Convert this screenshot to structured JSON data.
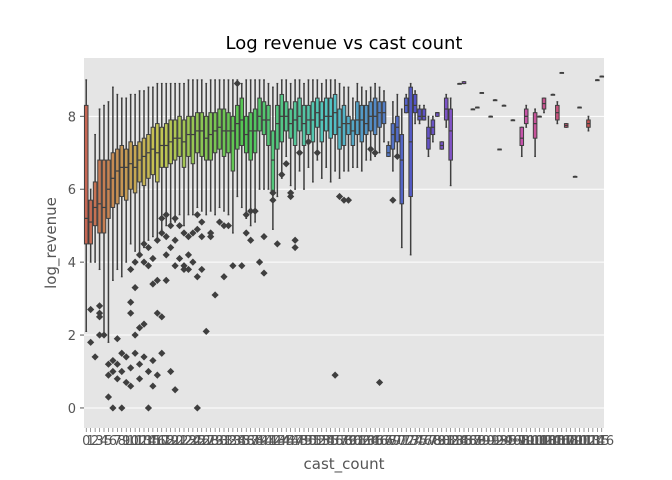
{
  "chart_data": {
    "type": "box",
    "title": "Log revenue vs cast count",
    "xlabel": "cast_count",
    "ylabel": "log_revenue",
    "ylim": [
      -0.55,
      9.6
    ],
    "y_ticks": [
      0,
      2,
      4,
      6,
      8
    ],
    "grid": true,
    "legend": "none",
    "style": "ggplot",
    "colors": {
      "panel": "#e5e5e5",
      "grid": "#ffffff",
      "box_edge": "#3f3f3f",
      "text": "#555555",
      "title": "#000000",
      "outlier": "#3f3f3f"
    },
    "x_tick_labels_visible": [
      "0",
      "1",
      "2",
      "3",
      "4",
      "5",
      "6",
      "7",
      "8",
      "9",
      "...",
      "6",
      "6"
    ],
    "boxes": [
      {
        "cat": "0",
        "q1": 4.5,
        "med": 5.2,
        "q3": 8.3,
        "lo": 2.1,
        "hi": 9.0,
        "fl": []
      },
      {
        "cat": "1",
        "q1": 4.5,
        "med": 5.1,
        "q3": 5.7,
        "lo": 4.0,
        "hi": 6.0,
        "fl": [
          2.7,
          1.8
        ]
      },
      {
        "cat": "2",
        "q1": 5.0,
        "med": 5.5,
        "q3": 6.2,
        "lo": 4.0,
        "hi": 7.5,
        "fl": [
          1.4
        ]
      },
      {
        "cat": "3",
        "q1": 4.8,
        "med": 5.6,
        "q3": 6.8,
        "lo": 3.8,
        "hi": 8.2,
        "fl": [
          2.8,
          2.6,
          2.5,
          2.0
        ]
      },
      {
        "cat": "4",
        "q1": 4.8,
        "med": 5.5,
        "q3": 6.8,
        "lo": 2.0,
        "hi": 8.3,
        "fl": [
          2.0
        ]
      },
      {
        "cat": "5",
        "q1": 5.2,
        "med": 6.0,
        "q3": 6.8,
        "lo": 1.8,
        "hi": 8.4,
        "fl": [
          1.2,
          0.9,
          0.3
        ]
      },
      {
        "cat": "6",
        "q1": 5.5,
        "med": 6.3,
        "q3": 7.0,
        "lo": 3.5,
        "hi": 8.8,
        "fl": [
          1.3,
          1.0,
          0.0
        ]
      },
      {
        "cat": "7",
        "q1": 5.6,
        "med": 6.5,
        "q3": 7.1,
        "lo": 3.8,
        "hi": 8.6,
        "fl": [
          1.9,
          1.2,
          0.8
        ]
      },
      {
        "cat": "8",
        "q1": 5.8,
        "med": 6.6,
        "q3": 7.2,
        "lo": 3.6,
        "hi": 8.5,
        "fl": [
          1.5,
          1.0,
          0.0
        ]
      },
      {
        "cat": "9",
        "q1": 5.7,
        "med": 6.6,
        "q3": 7.1,
        "lo": 4.0,
        "hi": 8.5,
        "fl": [
          1.4,
          0.7
        ]
      },
      {
        "cat": "10",
        "q1": 6.0,
        "med": 6.7,
        "q3": 7.3,
        "lo": 4.5,
        "hi": 8.6,
        "fl": [
          3.8,
          2.9,
          2.6,
          1.1,
          0.6
        ]
      },
      {
        "cat": "11",
        "q1": 5.9,
        "med": 6.6,
        "q3": 7.2,
        "lo": 4.3,
        "hi": 8.6,
        "fl": [
          4.0,
          3.3,
          2.0,
          1.5
        ]
      },
      {
        "cat": "12",
        "q1": 6.2,
        "med": 6.8,
        "q3": 7.3,
        "lo": 4.2,
        "hi": 8.7,
        "fl": [
          4.2,
          2.2,
          1.2,
          0.8
        ]
      },
      {
        "cat": "13",
        "q1": 6.1,
        "med": 6.9,
        "q3": 7.4,
        "lo": 4.4,
        "hi": 8.7,
        "fl": [
          4.5,
          4.0,
          2.3,
          1.4
        ]
      },
      {
        "cat": "14",
        "q1": 6.3,
        "med": 7.0,
        "q3": 7.5,
        "lo": 4.6,
        "hi": 8.8,
        "fl": [
          4.4,
          3.9,
          1.0,
          0.0
        ]
      },
      {
        "cat": "15",
        "q1": 6.4,
        "med": 7.1,
        "q3": 7.7,
        "lo": 4.7,
        "hi": 8.8,
        "fl": [
          4.1,
          3.4,
          1.3,
          0.6
        ]
      },
      {
        "cat": "16",
        "q1": 6.2,
        "med": 7.0,
        "q3": 7.8,
        "lo": 4.6,
        "hi": 8.9,
        "fl": [
          4.6,
          3.5,
          2.6,
          0.9
        ]
      },
      {
        "cat": "17",
        "q1": 6.6,
        "med": 7.2,
        "q3": 7.7,
        "lo": 4.9,
        "hi": 8.9,
        "fl": [
          5.2,
          4.8,
          2.5,
          1.5
        ]
      },
      {
        "cat": "18",
        "q1": 6.6,
        "med": 7.2,
        "q3": 7.8,
        "lo": 5.0,
        "hi": 8.9,
        "fl": [
          5.3,
          4.7,
          4.2,
          3.5
        ]
      },
      {
        "cat": "19",
        "q1": 6.7,
        "med": 7.3,
        "q3": 7.9,
        "lo": 5.1,
        "hi": 8.9,
        "fl": [
          5.0,
          4.4,
          1.0
        ]
      },
      {
        "cat": "20",
        "q1": 6.8,
        "med": 7.4,
        "q3": 7.9,
        "lo": 5.1,
        "hi": 8.9,
        "fl": [
          5.2,
          4.6,
          3.9,
          0.5
        ]
      },
      {
        "cat": "21",
        "q1": 6.9,
        "med": 7.4,
        "q3": 8.0,
        "lo": 5.3,
        "hi": 8.9,
        "fl": [
          5.0,
          4.1
        ]
      },
      {
        "cat": "22",
        "q1": 6.6,
        "med": 7.3,
        "q3": 7.9,
        "lo": 5.0,
        "hi": 8.9,
        "fl": [
          4.8,
          3.8,
          3.9
        ]
      },
      {
        "cat": "23",
        "q1": 6.9,
        "med": 7.5,
        "q3": 8.0,
        "lo": 5.3,
        "hi": 9.0,
        "fl": [
          4.7,
          4.2,
          3.8
        ]
      },
      {
        "cat": "24",
        "q1": 6.7,
        "med": 7.5,
        "q3": 8.0,
        "lo": 5.3,
        "hi": 9.0,
        "fl": [
          4.8,
          4.0
        ]
      },
      {
        "cat": "25",
        "q1": 7.0,
        "med": 7.6,
        "q3": 8.1,
        "lo": 5.5,
        "hi": 9.0,
        "fl": [
          5.3,
          4.9,
          3.6,
          0.0
        ]
      },
      {
        "cat": "26",
        "q1": 6.9,
        "med": 7.6,
        "q3": 8.1,
        "lo": 5.4,
        "hi": 9.0,
        "fl": [
          5.1,
          4.7,
          3.8
        ]
      },
      {
        "cat": "27",
        "q1": 6.8,
        "med": 7.4,
        "q3": 8.0,
        "lo": 5.3,
        "hi": 8.9,
        "fl": [
          2.1
        ]
      },
      {
        "cat": "28",
        "q1": 6.8,
        "med": 7.5,
        "q3": 8.1,
        "lo": 5.4,
        "hi": 9.0,
        "fl": [
          4.8,
          4.7
        ]
      },
      {
        "cat": "29",
        "q1": 7.0,
        "med": 7.6,
        "q3": 8.1,
        "lo": 5.3,
        "hi": 9.0,
        "fl": [
          3.1
        ]
      },
      {
        "cat": "30",
        "q1": 7.1,
        "med": 7.7,
        "q3": 8.2,
        "lo": 5.5,
        "hi": 9.0,
        "fl": [
          5.1
        ]
      },
      {
        "cat": "31",
        "q1": 6.9,
        "med": 7.6,
        "q3": 8.2,
        "lo": 5.4,
        "hi": 9.0,
        "fl": [
          3.6,
          5.0
        ]
      },
      {
        "cat": "32",
        "q1": 7.0,
        "med": 7.6,
        "q3": 8.1,
        "lo": 5.3,
        "hi": 9.0,
        "fl": [
          5.0
        ]
      },
      {
        "cat": "33",
        "q1": 6.5,
        "med": 7.6,
        "q3": 8.0,
        "lo": 4.8,
        "hi": 9.0,
        "fl": [
          3.9
        ]
      },
      {
        "cat": "34",
        "q1": 7.1,
        "med": 7.8,
        "q3": 8.3,
        "lo": 5.8,
        "hi": 9.0,
        "fl": [
          8.9
        ]
      },
      {
        "cat": "35",
        "q1": 7.2,
        "med": 7.9,
        "q3": 8.5,
        "lo": 5.5,
        "hi": 8.9,
        "fl": [
          3.9
        ]
      },
      {
        "cat": "36",
        "q1": 7.0,
        "med": 7.5,
        "q3": 8.0,
        "lo": 5.2,
        "hi": 9.0,
        "fl": [
          4.8,
          5.3
        ]
      },
      {
        "cat": "37",
        "q1": 6.8,
        "med": 7.6,
        "q3": 8.1,
        "lo": 5.0,
        "hi": 9.0,
        "fl": [
          4.6,
          5.4
        ]
      },
      {
        "cat": "38",
        "q1": 7.0,
        "med": 7.6,
        "q3": 8.2,
        "lo": 5.1,
        "hi": 9.0,
        "fl": [
          5.4
        ]
      },
      {
        "cat": "39",
        "q1": 7.6,
        "med": 8.0,
        "q3": 8.5,
        "lo": 6.0,
        "hi": 9.0,
        "fl": [
          4.0
        ]
      },
      {
        "cat": "40",
        "q1": 7.5,
        "med": 7.9,
        "q3": 8.4,
        "lo": 6.0,
        "hi": 9.0,
        "fl": [
          3.7,
          4.7
        ]
      },
      {
        "cat": "41",
        "q1": 7.2,
        "med": 7.9,
        "q3": 8.3,
        "lo": 6.0,
        "hi": 8.9,
        "fl": []
      },
      {
        "cat": "42",
        "q1": 5.9,
        "med": 6.8,
        "q3": 7.6,
        "lo": 4.9,
        "hi": 8.8,
        "fl": [
          5.7,
          5.9
        ]
      },
      {
        "cat": "43",
        "q1": 7.1,
        "med": 7.8,
        "q3": 8.3,
        "lo": 5.8,
        "hi": 8.9,
        "fl": [
          4.5
        ]
      },
      {
        "cat": "44",
        "q1": 7.3,
        "med": 8.0,
        "q3": 8.6,
        "lo": 6.3,
        "hi": 9.0,
        "fl": [
          6.4
        ]
      },
      {
        "cat": "45",
        "q1": 7.6,
        "med": 8.0,
        "q3": 8.4,
        "lo": 6.9,
        "hi": 9.0,
        "fl": [
          6.7
        ]
      },
      {
        "cat": "46",
        "q1": 7.4,
        "med": 7.8,
        "q3": 8.2,
        "lo": 6.1,
        "hi": 8.9,
        "fl": [
          5.9,
          5.8
        ]
      },
      {
        "cat": "47",
        "q1": 7.2,
        "med": 7.9,
        "q3": 8.4,
        "lo": 6.0,
        "hi": 9.0,
        "fl": [
          4.6,
          4.4
        ]
      },
      {
        "cat": "48",
        "q1": 7.6,
        "med": 8.0,
        "q3": 8.5,
        "lo": 6.5,
        "hi": 9.0,
        "fl": [
          7.0
        ]
      },
      {
        "cat": "49",
        "q1": 7.2,
        "med": 7.8,
        "q3": 8.3,
        "lo": 6.0,
        "hi": 8.9,
        "fl": []
      },
      {
        "cat": "50",
        "q1": 7.5,
        "med": 7.9,
        "q3": 8.3,
        "lo": 6.6,
        "hi": 9.0,
        "fl": [
          7.3
        ]
      },
      {
        "cat": "51",
        "q1": 7.3,
        "med": 7.9,
        "q3": 8.4,
        "lo": 6.2,
        "hi": 9.0,
        "fl": []
      },
      {
        "cat": "52",
        "q1": 7.7,
        "med": 8.1,
        "q3": 8.5,
        "lo": 6.8,
        "hi": 9.0,
        "fl": [
          7.0
        ]
      },
      {
        "cat": "53",
        "q1": 7.3,
        "med": 7.9,
        "q3": 8.4,
        "lo": 6.3,
        "hi": 8.9,
        "fl": []
      },
      {
        "cat": "54",
        "q1": 7.6,
        "med": 8.0,
        "q3": 8.5,
        "lo": 6.6,
        "hi": 9.0,
        "fl": []
      },
      {
        "cat": "55",
        "q1": 7.4,
        "med": 8.0,
        "q3": 8.5,
        "lo": 6.2,
        "hi": 9.0,
        "fl": []
      },
      {
        "cat": "56",
        "q1": 7.5,
        "med": 8.1,
        "q3": 8.6,
        "lo": 6.5,
        "hi": 9.0,
        "fl": [
          0.9
        ]
      },
      {
        "cat": "57",
        "q1": 7.1,
        "med": 7.7,
        "q3": 8.2,
        "lo": 6.3,
        "hi": 8.9,
        "fl": [
          5.8
        ]
      },
      {
        "cat": "58",
        "q1": 7.2,
        "med": 7.8,
        "q3": 8.3,
        "lo": 6.5,
        "hi": 8.8,
        "fl": [
          5.7
        ]
      },
      {
        "cat": "59",
        "q1": 7.5,
        "med": 7.8,
        "q3": 8.0,
        "lo": 6.5,
        "hi": 8.8,
        "fl": [
          5.7
        ]
      },
      {
        "cat": "60",
        "q1": 7.2,
        "med": 7.6,
        "q3": 7.9,
        "lo": 6.6,
        "hi": 8.5,
        "fl": []
      },
      {
        "cat": "61",
        "q1": 7.5,
        "med": 7.9,
        "q3": 8.4,
        "lo": 6.6,
        "hi": 8.9,
        "fl": []
      },
      {
        "cat": "62",
        "q1": 7.3,
        "med": 7.9,
        "q3": 8.3,
        "lo": 6.5,
        "hi": 8.8,
        "fl": []
      },
      {
        "cat": "63",
        "q1": 7.5,
        "med": 7.8,
        "q3": 8.3,
        "lo": 6.8,
        "hi": 8.7,
        "fl": []
      },
      {
        "cat": "64",
        "q1": 7.6,
        "med": 8.0,
        "q3": 8.4,
        "lo": 6.8,
        "hi": 8.8,
        "fl": [
          7.1
        ]
      },
      {
        "cat": "65",
        "q1": 7.5,
        "med": 8.0,
        "q3": 8.5,
        "lo": 6.9,
        "hi": 8.9,
        "fl": [
          7.0
        ]
      },
      {
        "cat": "66",
        "q1": 7.7,
        "med": 8.1,
        "q3": 8.4,
        "lo": 7.0,
        "hi": 8.8,
        "fl": [
          0.7
        ]
      },
      {
        "cat": "67",
        "q1": 7.8,
        "med": 8.1,
        "q3": 8.4,
        "lo": 7.3,
        "hi": 8.7,
        "fl": []
      },
      {
        "cat": "68",
        "q1": 6.9,
        "med": 7.0,
        "q3": 7.2,
        "lo": 6.9,
        "hi": 7.3,
        "fl": []
      },
      {
        "cat": "69",
        "q1": 7.1,
        "med": 7.5,
        "q3": 7.8,
        "lo": 6.5,
        "hi": 8.4,
        "fl": [
          5.7
        ]
      },
      {
        "cat": "70",
        "q1": 7.3,
        "med": 7.7,
        "q3": 8.0,
        "lo": 6.9,
        "hi": 8.6,
        "fl": [
          6.9
        ]
      },
      {
        "cat": "71",
        "q1": 5.6,
        "med": 6.8,
        "q3": 7.5,
        "lo": 4.4,
        "hi": 8.2,
        "fl": []
      },
      {
        "cat": "72",
        "q1": 8.1,
        "med": 8.3,
        "q3": 8.5,
        "lo": 8.1,
        "hi": 8.6,
        "fl": []
      },
      {
        "cat": "73",
        "q1": 5.8,
        "med": 7.3,
        "q3": 8.8,
        "lo": 4.2,
        "hi": 8.9,
        "fl": []
      },
      {
        "cat": "74",
        "q1": 8.1,
        "med": 8.3,
        "q3": 8.6,
        "lo": 7.8,
        "hi": 8.7,
        "fl": []
      },
      {
        "cat": "75",
        "q1": 7.9,
        "med": 8.0,
        "q3": 8.2,
        "lo": 7.8,
        "hi": 8.3,
        "fl": []
      },
      {
        "cat": "76",
        "q1": 7.9,
        "med": 8.0,
        "q3": 8.2,
        "lo": 7.9,
        "hi": 8.3,
        "fl": []
      },
      {
        "cat": "77",
        "q1": 7.1,
        "med": 7.4,
        "q3": 7.7,
        "lo": 6.9,
        "hi": 8.0,
        "fl": []
      },
      {
        "cat": "78",
        "q1": 7.5,
        "med": 7.7,
        "q3": 7.9,
        "lo": 7.3,
        "hi": 8.0,
        "fl": []
      },
      {
        "cat": "79",
        "q1": 8.0,
        "med": 8.1,
        "q3": 8.1,
        "lo": 8.0,
        "hi": 8.1,
        "fl": []
      },
      {
        "cat": "80",
        "q1": 7.1,
        "med": 7.2,
        "q3": 7.3,
        "lo": 7.1,
        "hi": 7.3,
        "fl": []
      },
      {
        "cat": "81",
        "q1": 7.9,
        "med": 8.2,
        "q3": 8.5,
        "lo": 7.7,
        "hi": 8.6,
        "fl": []
      },
      {
        "cat": "82",
        "q1": 6.8,
        "med": 7.6,
        "q3": 8.2,
        "lo": 6.1,
        "hi": 8.5,
        "fl": []
      },
      {
        "cat": "84",
        "q1": 8.9,
        "med": 8.9,
        "q3": 8.9,
        "lo": 8.9,
        "hi": 8.9,
        "fl": []
      },
      {
        "cat": "85",
        "q1": 8.9,
        "med": 8.9,
        "q3": 8.95,
        "lo": 8.9,
        "hi": 8.95,
        "fl": []
      },
      {
        "cat": "87",
        "q1": 8.2,
        "med": 8.2,
        "q3": 8.2,
        "lo": 8.2,
        "hi": 8.2,
        "fl": []
      },
      {
        "cat": "88",
        "q1": 8.25,
        "med": 8.25,
        "q3": 8.25,
        "lo": 8.25,
        "hi": 8.25,
        "fl": []
      },
      {
        "cat": "89",
        "q1": 8.65,
        "med": 8.65,
        "q3": 8.65,
        "lo": 8.65,
        "hi": 8.65,
        "fl": []
      },
      {
        "cat": "91",
        "q1": 8.0,
        "med": 8.0,
        "q3": 8.0,
        "lo": 8.0,
        "hi": 8.0,
        "fl": []
      },
      {
        "cat": "92",
        "q1": 8.45,
        "med": 8.45,
        "q3": 8.45,
        "lo": 8.45,
        "hi": 8.45,
        "fl": []
      },
      {
        "cat": "93",
        "q1": 7.1,
        "med": 7.1,
        "q3": 7.1,
        "lo": 7.1,
        "hi": 7.1,
        "fl": []
      },
      {
        "cat": "94",
        "q1": 8.3,
        "med": 8.3,
        "q3": 8.3,
        "lo": 8.3,
        "hi": 8.3,
        "fl": []
      },
      {
        "cat": "96",
        "q1": 7.9,
        "med": 7.9,
        "q3": 7.9,
        "lo": 7.9,
        "hi": 7.9,
        "fl": []
      },
      {
        "cat": "98",
        "q1": 7.2,
        "med": 7.4,
        "q3": 7.7,
        "lo": 6.9,
        "hi": 7.7,
        "fl": []
      },
      {
        "cat": "99",
        "q1": 7.8,
        "med": 8.0,
        "q3": 8.2,
        "lo": 7.7,
        "hi": 8.3,
        "fl": []
      },
      {
        "cat": "101",
        "q1": 7.4,
        "med": 7.8,
        "q3": 8.1,
        "lo": 6.9,
        "hi": 8.2,
        "fl": []
      },
      {
        "cat": "102",
        "q1": 8.0,
        "med": 8.0,
        "q3": 8.0,
        "lo": 8.0,
        "hi": 8.0,
        "fl": []
      },
      {
        "cat": "103",
        "q1": 8.2,
        "med": 8.35,
        "q3": 8.5,
        "lo": 8.1,
        "hi": 8.5,
        "fl": []
      },
      {
        "cat": "105",
        "q1": 8.6,
        "med": 8.6,
        "q3": 8.6,
        "lo": 8.6,
        "hi": 8.6,
        "fl": []
      },
      {
        "cat": "106",
        "q1": 7.9,
        "med": 8.1,
        "q3": 8.3,
        "lo": 7.8,
        "hi": 8.4,
        "fl": []
      },
      {
        "cat": "107",
        "q1": 9.2,
        "med": 9.2,
        "q3": 9.2,
        "lo": 9.2,
        "hi": 9.2,
        "fl": []
      },
      {
        "cat": "108",
        "q1": 7.7,
        "med": 7.75,
        "q3": 7.8,
        "lo": 7.7,
        "hi": 7.8,
        "fl": []
      },
      {
        "cat": "110",
        "q1": 6.35,
        "med": 6.35,
        "q3": 6.35,
        "lo": 6.35,
        "hi": 6.35,
        "fl": []
      },
      {
        "cat": "111",
        "q1": 8.25,
        "med": 8.25,
        "q3": 8.25,
        "lo": 8.25,
        "hi": 8.25,
        "fl": []
      },
      {
        "cat": "113",
        "q1": 7.7,
        "med": 7.8,
        "q3": 7.9,
        "lo": 7.6,
        "hi": 8.0,
        "fl": []
      },
      {
        "cat": "115",
        "q1": 9.0,
        "med": 9.0,
        "q3": 9.0,
        "lo": 9.0,
        "hi": 9.0,
        "fl": []
      },
      {
        "cat": "116",
        "q1": 9.1,
        "med": 9.1,
        "q3": 9.1,
        "lo": 9.1,
        "hi": 9.1,
        "fl": []
      }
    ]
  }
}
